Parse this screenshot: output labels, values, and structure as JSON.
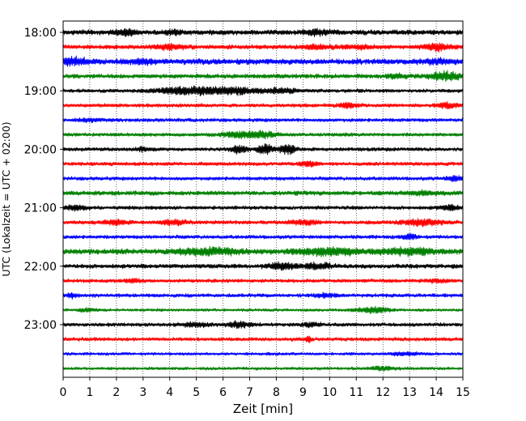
{
  "chart_data": {
    "type": "line",
    "xlabel": "Zeit  [min]",
    "ylabel": "UTC (Lokalzeit = UTC + 02:00)",
    "xlim": [
      0,
      15
    ],
    "x_ticks": [
      "0",
      "1",
      "2",
      "3",
      "4",
      "5",
      "6",
      "7",
      "8",
      "9",
      "10",
      "11",
      "12",
      "13",
      "14",
      "15"
    ],
    "y_ticks": [
      "18:00",
      "19:00",
      "20:00",
      "21:00",
      "22:00",
      "23:00"
    ],
    "grid": "vertical-dotted",
    "trace_interval_minutes": 15,
    "trace_colors": [
      "#000000",
      "#ff0000",
      "#0000ff",
      "#008000"
    ],
    "traces": [
      {
        "start": "18:00",
        "color": "#000000",
        "amplitude": 3.5,
        "bursts": [
          [
            2.3,
            0.4,
            3
          ],
          [
            4.2,
            0.3,
            2.5
          ],
          [
            9.5,
            0.4,
            3
          ]
        ]
      },
      {
        "start": "18:15",
        "color": "#ff0000",
        "amplitude": 3,
        "bursts": [
          [
            4,
            0.5,
            3
          ],
          [
            9.5,
            0.6,
            2
          ],
          [
            11,
            0.5,
            2
          ],
          [
            14,
            0.5,
            4
          ]
        ]
      },
      {
        "start": "18:30",
        "color": "#0000ff",
        "amplitude": 4,
        "bursts": [
          [
            0.4,
            0.5,
            4
          ],
          [
            3,
            0.5,
            2.5
          ],
          [
            14,
            0.5,
            2
          ]
        ]
      },
      {
        "start": "18:45",
        "color": "#008000",
        "amplitude": 3,
        "bursts": [
          [
            14.3,
            0.6,
            5
          ],
          [
            12.5,
            0.4,
            2
          ]
        ]
      },
      {
        "start": "19:00",
        "color": "#000000",
        "amplitude": 2.5,
        "bursts": [
          [
            4.7,
            1.2,
            5
          ],
          [
            6.5,
            1,
            4
          ],
          [
            8.2,
            0.6,
            3
          ]
        ]
      },
      {
        "start": "19:15",
        "color": "#ff0000",
        "amplitude": 2.5,
        "bursts": [
          [
            10.7,
            0.4,
            3
          ],
          [
            14.4,
            0.4,
            3
          ]
        ]
      },
      {
        "start": "19:30",
        "color": "#0000ff",
        "amplitude": 2.5,
        "bursts": [
          [
            1,
            0.4,
            2
          ]
        ]
      },
      {
        "start": "19:45",
        "color": "#008000",
        "amplitude": 2.5,
        "bursts": [
          [
            6.6,
            0.6,
            4
          ],
          [
            7.5,
            0.5,
            3.5
          ]
        ]
      },
      {
        "start": "20:00",
        "color": "#000000",
        "amplitude": 2.5,
        "bursts": [
          [
            6.6,
            0.3,
            5
          ],
          [
            7.6,
            0.3,
            6
          ],
          [
            8.4,
            0.3,
            6
          ],
          [
            3,
            0.3,
            2
          ]
        ]
      },
      {
        "start": "20:15",
        "color": "#ff0000",
        "amplitude": 2.5,
        "bursts": [
          [
            9.2,
            0.3,
            3
          ]
        ]
      },
      {
        "start": "20:30",
        "color": "#0000ff",
        "amplitude": 2.5,
        "bursts": [
          [
            14.7,
            0.3,
            3
          ]
        ]
      },
      {
        "start": "20:45",
        "color": "#008000",
        "amplitude": 3,
        "bursts": [
          [
            13.5,
            0.6,
            2
          ]
        ]
      },
      {
        "start": "21:00",
        "color": "#000000",
        "amplitude": 2.5,
        "bursts": [
          [
            0.4,
            0.4,
            3
          ],
          [
            14.5,
            0.4,
            3
          ]
        ]
      },
      {
        "start": "21:15",
        "color": "#ff0000",
        "amplitude": 2.5,
        "bursts": [
          [
            2,
            0.5,
            3
          ],
          [
            4.2,
            0.5,
            3
          ],
          [
            9,
            0.5,
            3
          ],
          [
            13.5,
            0.8,
            4
          ]
        ]
      },
      {
        "start": "21:30",
        "color": "#0000ff",
        "amplitude": 2.5,
        "bursts": [
          [
            13,
            0.3,
            3
          ]
        ]
      },
      {
        "start": "21:45",
        "color": "#008000",
        "amplitude": 3.5,
        "bursts": [
          [
            5.5,
            1.2,
            4
          ],
          [
            10,
            1.2,
            4.5
          ],
          [
            13,
            1,
            4
          ]
        ]
      },
      {
        "start": "22:00",
        "color": "#000000",
        "amplitude": 3,
        "bursts": [
          [
            8.2,
            0.5,
            4
          ],
          [
            9.6,
            0.5,
            3.5
          ]
        ]
      },
      {
        "start": "22:15",
        "color": "#ff0000",
        "amplitude": 2.5,
        "bursts": [
          [
            2.6,
            0.3,
            2
          ],
          [
            14,
            0.3,
            2
          ]
        ]
      },
      {
        "start": "22:30",
        "color": "#0000ff",
        "amplitude": 2.5,
        "bursts": [
          [
            0.3,
            0.2,
            2.5
          ],
          [
            9.8,
            0.4,
            2
          ]
        ]
      },
      {
        "start": "22:45",
        "color": "#008000",
        "amplitude": 2,
        "bursts": [
          [
            11.6,
            0.6,
            4
          ],
          [
            0.9,
            0.3,
            2
          ]
        ]
      },
      {
        "start": "23:00",
        "color": "#000000",
        "amplitude": 2.5,
        "bursts": [
          [
            5,
            0.5,
            3
          ],
          [
            6.6,
            0.4,
            4
          ],
          [
            9.3,
            0.3,
            3
          ]
        ]
      },
      {
        "start": "23:15",
        "color": "#ff0000",
        "amplitude": 2.5,
        "bursts": [
          [
            9.2,
            0.1,
            4
          ]
        ]
      },
      {
        "start": "23:30",
        "color": "#0000ff",
        "amplitude": 2,
        "bursts": [
          [
            12.8,
            0.5,
            2
          ]
        ]
      },
      {
        "start": "23:45",
        "color": "#008000",
        "amplitude": 2,
        "bursts": [
          [
            12,
            0.5,
            2
          ]
        ]
      }
    ]
  }
}
